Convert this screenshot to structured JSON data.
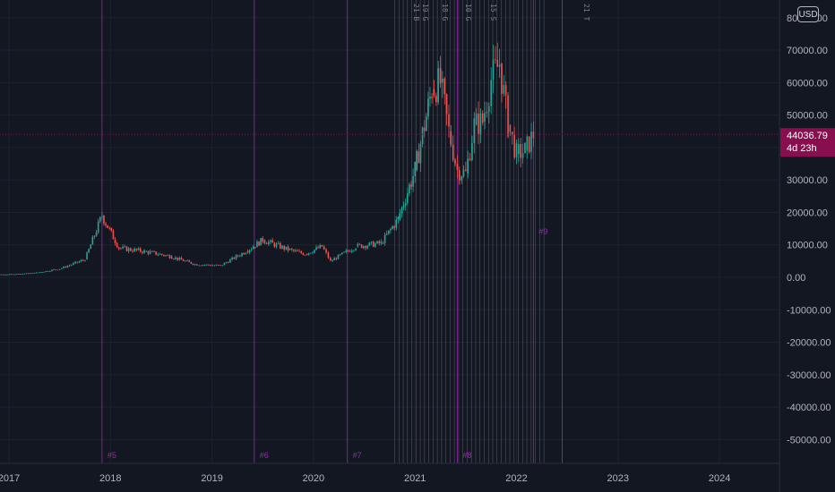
{
  "currency_button": {
    "label": "USD"
  },
  "chart_data": {
    "type": "candlestick",
    "x_axis": {
      "tick_labels": [
        "2017",
        "2018",
        "2019",
        "2020",
        "2021",
        "2022",
        "2023",
        "2024"
      ]
    },
    "y_axis": {
      "tick_values": [
        80000,
        70000,
        60000,
        50000,
        40000,
        30000,
        20000,
        10000,
        0,
        -10000,
        -20000,
        -30000,
        -40000,
        -50000
      ],
      "tick_labels": [
        "80000.00",
        "70000.00",
        "60000.00",
        "50000.00",
        "40000.00",
        "30000.00",
        "20000.00",
        "10000.00",
        "0.00",
        "-10000.00",
        "-20000.00",
        "-30000.00",
        "-40000.00",
        "-50000.00"
      ],
      "range": [
        -57000,
        82000
      ]
    },
    "last_price": {
      "value": 44036.79,
      "label": "44036.79",
      "countdown": "4d 23h",
      "color": "#880e4f"
    },
    "colors": {
      "up": "#26a69a",
      "down": "#ef5350",
      "cycle_line": "#9c27b0",
      "event_line": "#787b86"
    },
    "cycle_markers": [
      {
        "label": "#5",
        "date": "2017-12"
      },
      {
        "label": "#6",
        "date": "2019-06"
      },
      {
        "label": "#7",
        "date": "2020-05"
      },
      {
        "label": "#8",
        "date": "2021-06"
      },
      {
        "label": "#9",
        "date": "2022-03"
      }
    ],
    "event_labels": [
      "21 B",
      "19 G",
      "18 G",
      "10 G",
      "15 S",
      "21 T"
    ],
    "grid": true,
    "price_path": [
      {
        "date": "2016-07",
        "price": 650
      },
      {
        "date": "2017-01",
        "price": 900
      },
      {
        "date": "2017-04",
        "price": 1300
      },
      {
        "date": "2017-07",
        "price": 2600
      },
      {
        "date": "2017-10",
        "price": 5500
      },
      {
        "date": "2017-12",
        "price": 19000
      },
      {
        "date": "2018-02",
        "price": 9000
      },
      {
        "date": "2018-05",
        "price": 8000
      },
      {
        "date": "2018-08",
        "price": 6500
      },
      {
        "date": "2018-11",
        "price": 4000
      },
      {
        "date": "2019-02",
        "price": 3600
      },
      {
        "date": "2019-05",
        "price": 8000
      },
      {
        "date": "2019-07",
        "price": 11500
      },
      {
        "date": "2019-10",
        "price": 8500
      },
      {
        "date": "2019-12",
        "price": 7200
      },
      {
        "date": "2020-02",
        "price": 9500
      },
      {
        "date": "2020-03",
        "price": 5000
      },
      {
        "date": "2020-06",
        "price": 9500
      },
      {
        "date": "2020-09",
        "price": 10500
      },
      {
        "date": "2020-11",
        "price": 18000
      },
      {
        "date": "2021-01",
        "price": 33000
      },
      {
        "date": "2021-03",
        "price": 58000
      },
      {
        "date": "2021-04",
        "price": 60000
      },
      {
        "date": "2021-05",
        "price": 45000
      },
      {
        "date": "2021-06",
        "price": 33000
      },
      {
        "date": "2021-07",
        "price": 32000
      },
      {
        "date": "2021-08",
        "price": 47000
      },
      {
        "date": "2021-09",
        "price": 48000
      },
      {
        "date": "2021-10",
        "price": 61000
      },
      {
        "date": "2021-11",
        "price": 66000
      },
      {
        "date": "2021-12",
        "price": 47000
      },
      {
        "date": "2022-01",
        "price": 38000
      },
      {
        "date": "2022-02",
        "price": 39000
      },
      {
        "date": "2022-03",
        "price": 44036.79
      }
    ]
  }
}
